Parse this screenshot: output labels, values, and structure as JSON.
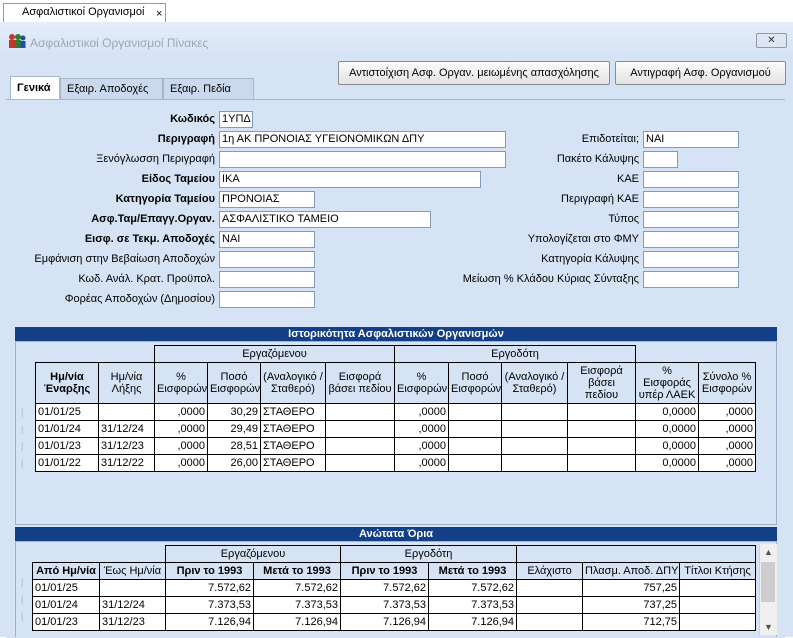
{
  "doc_tab": {
    "label": "Ασφαλιστικοί Οργανισμοί",
    "close": "×"
  },
  "window": {
    "title": "Ασφαλιστικοί Οργανισμοί Πίνακες",
    "close": "✕"
  },
  "toolbar": {
    "match_label": "Αντιστοίχιση Ασφ. Οργαν. μειωμένης απασχόλησης",
    "copy_label": "Αντιγραφή Ασφ. Οργανισμού"
  },
  "tabs": [
    {
      "label": "Γενικά"
    },
    {
      "label": "Εξαιρ. Αποδοχές"
    },
    {
      "label": "Εξαιρ. Πεδία"
    }
  ],
  "form": {
    "code": {
      "label": "Κωδικός",
      "value": "1ΥΠΔ"
    },
    "description": {
      "label": "Περιγραφή",
      "value": "1η ΑΚ ΠΡΟΝΟΙΑΣ ΥΓΕΙΟΝΟΜΙΚΩΝ ΔΠΥ"
    },
    "foreign_desc": {
      "label": "Ξενόγλωσση Περιγραφή",
      "value": ""
    },
    "fund_type": {
      "label": "Είδος Ταμείου",
      "value": "ΙΚΑ"
    },
    "fund_category": {
      "label": "Κατηγορία Ταμείου",
      "value": "ΠΡΟΝΟΙΑΣ"
    },
    "fund_org": {
      "label": "Ασφ.Ταμ/Επαγγ.Οργαν.",
      "value": "ΑΣΦΑΛΙΣΤΙΚΟ ΤΑΜΕΙΟ"
    },
    "contrib_earnings": {
      "label": "Εισφ. σε Τεκμ. Αποδοχές",
      "value": "ΝΑΙ"
    },
    "show_cert": {
      "label": "Εμφάνιση στην Βεβαίωση Αποδοχών",
      "value": ""
    },
    "anal_code": {
      "label": "Κωδ. Ανάλ. Κρατ. Προϋπολ.",
      "value": ""
    },
    "earnings_body": {
      "label": "Φορέας Αποδοχών (Δημοσίου)",
      "value": ""
    },
    "subsidized": {
      "label": "Επιδοτείται;",
      "value": "ΝΑΙ"
    },
    "package": {
      "label": "Πακέτο Κάλυψης",
      "value": ""
    },
    "kae": {
      "label": "ΚΑΕ",
      "value": ""
    },
    "kae_desc": {
      "label": "Περιγραφή ΚΑΕ",
      "value": ""
    },
    "type": {
      "label": "Τύπος",
      "value": ""
    },
    "calc_fmy": {
      "label": "Υπολογίζεται στο ΦΜΥ",
      "value": ""
    },
    "coverage_cat": {
      "label": "Κατηγορία Κάλυψης",
      "value": ""
    },
    "reduction": {
      "label": "Μείωση % Κλάδου Κύριας Σύνταξης",
      "value": ""
    }
  },
  "history": {
    "title": "Ιστορικότητα Ασφαλιστικών Οργανισμών",
    "group_employee": "Εργαζόμενου",
    "group_employer": "Εργοδότη",
    "headers": [
      "Ημ/νία Έναρξης",
      "Ημ/νία Λήξης",
      "% Εισφορών",
      "Ποσό Εισφορών",
      "(Αναλογικό / Σταθερό)",
      "Εισφορά βάσει πεδίου",
      "% Εισφορών",
      "Ποσό Εισφορών",
      "(Αναλογικό / Σταθερό)",
      "Εισφορά βάσει πεδίου",
      "% Εισφοράς υπέρ ΛΑΕΚ",
      "Σύνολο % Εισφορών"
    ],
    "rows": [
      [
        "01/01/25",
        "",
        ",0000",
        "30,29",
        "ΣΤΑΘΕΡΟ",
        "",
        ",0000",
        "",
        "",
        "",
        "0,0000",
        ",0000"
      ],
      [
        "01/01/24",
        "31/12/24",
        ",0000",
        "29,49",
        "ΣΤΑΘΕΡΟ",
        "",
        ",0000",
        "",
        "",
        "",
        "0,0000",
        ",0000"
      ],
      [
        "01/01/23",
        "31/12/23",
        ",0000",
        "28,51",
        "ΣΤΑΘΕΡΟ",
        "",
        ",0000",
        "",
        "",
        "",
        "0,0000",
        ",0000"
      ],
      [
        "01/01/22",
        "31/12/22",
        ",0000",
        "26,00",
        "ΣΤΑΘΕΡΟ",
        "",
        ",0000",
        "",
        "",
        "",
        "0,0000",
        ",0000"
      ]
    ]
  },
  "limits": {
    "title": "Ανώτατα Όρια",
    "group_employee": "Εργαζόμενου",
    "group_employer": "Εργοδότη",
    "headers": [
      "Από Ημ/νία",
      "Έως Ημ/νία",
      "Πριν το 1993",
      "Μετά το 1993",
      "Πριν το 1993",
      "Μετά το 1993",
      "Ελάχιστο",
      "Πλασμ. Αποδ. ΔΠΥ",
      "Τίτλοι Κτήσης"
    ],
    "rows": [
      [
        "01/01/25",
        "",
        "7.572,62",
        "7.572,62",
        "7.572,62",
        "7.572,62",
        "",
        "757,25",
        ""
      ],
      [
        "01/01/24",
        "31/12/24",
        "7.373,53",
        "7.373,53",
        "7.373,53",
        "7.373,53",
        "",
        "737,25",
        ""
      ],
      [
        "01/01/23",
        "31/12/23",
        "7.126,94",
        "7.126,94",
        "7.126,94",
        "7.126,94",
        "",
        "712,75",
        ""
      ]
    ]
  },
  "scrollbar": {
    "up": "▲",
    "down": "▼"
  },
  "colors": {
    "accent": "#123f85",
    "background": "#d6e3f5"
  }
}
